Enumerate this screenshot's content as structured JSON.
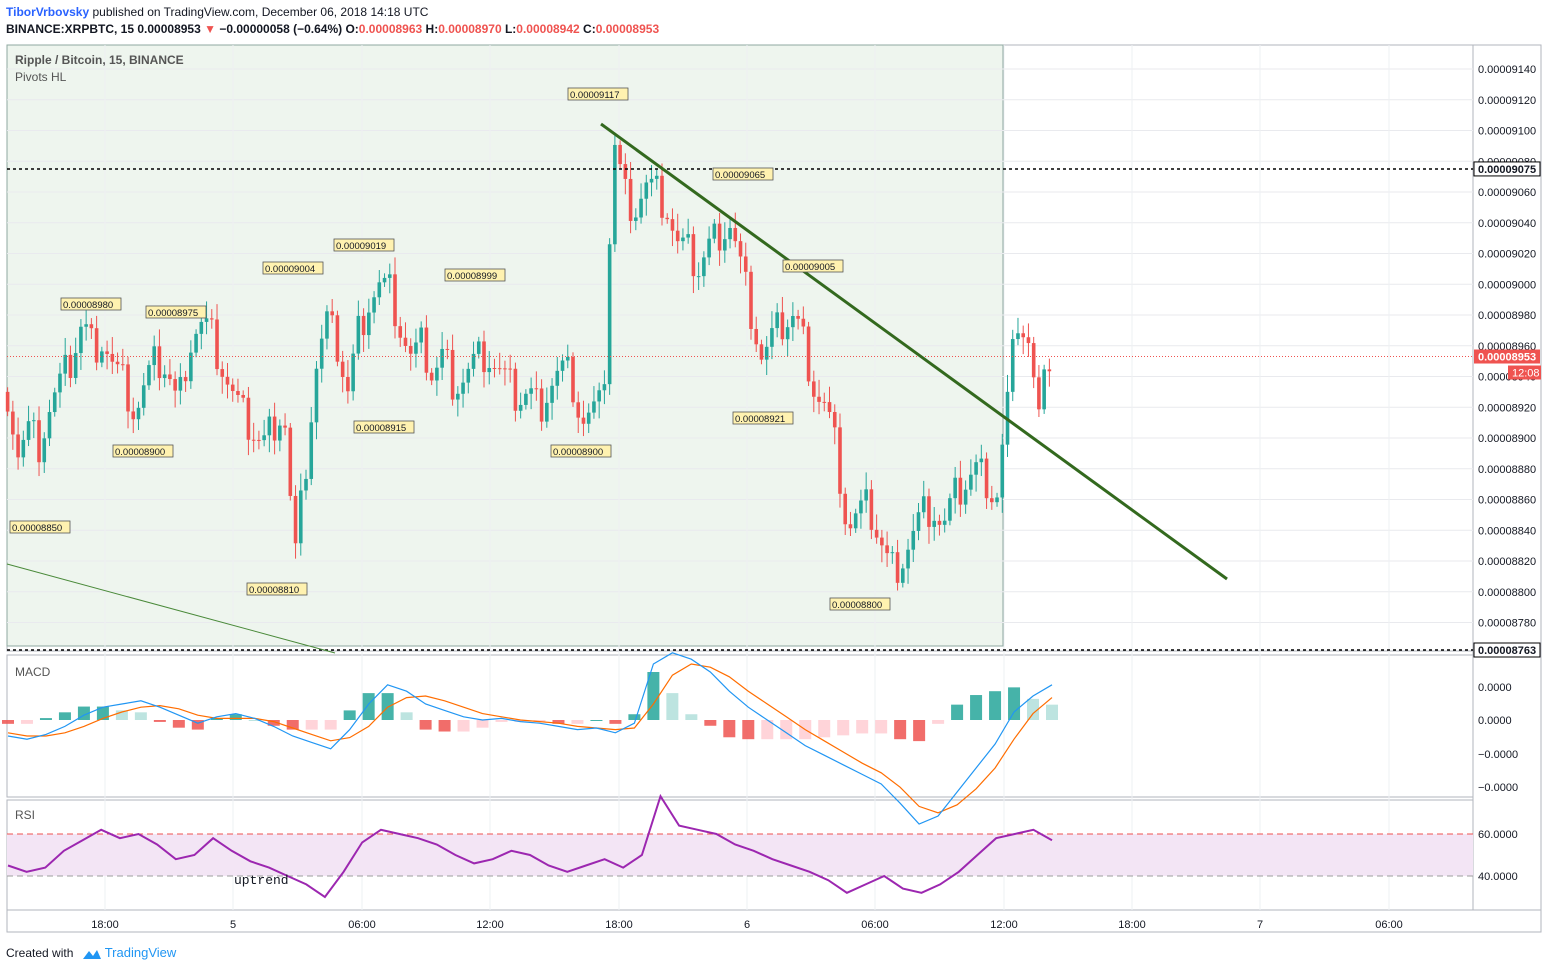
{
  "header": {
    "user": "TiborVrbovsky",
    "published_text": " published on TradingView.com, December 06, 2018 14:18 UTC",
    "symbol": "BINANCE:XRPBTC, 15",
    "last": "0.00008953",
    "change_arrow": "▼",
    "change": "−0.00000058 (−0.64%)",
    "o_label": "O:",
    "o": "0.00008963",
    "h_label": "H:",
    "h": "0.00008970",
    "l_label": "L:",
    "l": "0.00008942",
    "c_label": "C:",
    "c": "0.00008953"
  },
  "footer": {
    "created": "Created with",
    "brand": "TradingView"
  },
  "chart_data": {
    "type": "candlestick",
    "title": "Ripple / Bitcoin, 15, BINANCE",
    "indicator": "Pivots HL",
    "y_range": [
      8.76e-05,
      9.15e-05
    ],
    "y_ticks": [
      "0.00009140",
      "0.00009120",
      "0.00009100",
      "0.00009080",
      "0.00009060",
      "0.00009040",
      "0.00009020",
      "0.00009000",
      "0.00008980",
      "0.00008960",
      "0.00008940",
      "0.00008920",
      "0.00008900",
      "0.00008880",
      "0.00008860",
      "0.00008840",
      "0.00008820",
      "0.00008800",
      "0.00008780"
    ],
    "x_ticks": [
      "18:00",
      "5",
      "06:00",
      "12:00",
      "18:00",
      "6",
      "06:00",
      "12:00",
      "18:00",
      "7",
      "06:00"
    ],
    "last_price": "0.00008953",
    "countdown": "12:08",
    "horizontal_levels": [
      {
        "label": "0.00009075",
        "value": 9.075e-05
      },
      {
        "label": "0.00008763",
        "value": 8.763e-05
      }
    ],
    "trendlines": [
      {
        "from": [
          "5 17:00",
          9.103e-05
        ],
        "to": [
          "6 23:20",
          8.81e-05
        ]
      },
      {
        "from": [
          "4 14:00",
          8.818e-05
        ],
        "to": [
          "5 09:20",
          8.758e-05
        ]
      }
    ],
    "pivots": [
      {
        "label": "0.00008850",
        "type": "low"
      },
      {
        "label": "0.00008980",
        "type": "high"
      },
      {
        "label": "0.00008900",
        "type": "low"
      },
      {
        "label": "0.00008975",
        "type": "high"
      },
      {
        "label": "0.00009004",
        "type": "high"
      },
      {
        "label": "0.00008810",
        "type": "low"
      },
      {
        "label": "0.00009019",
        "type": "high"
      },
      {
        "label": "0.00008915",
        "type": "low"
      },
      {
        "label": "0.00008999",
        "type": "high"
      },
      {
        "label": "0.00008900",
        "type": "low"
      },
      {
        "label": "0.00009117",
        "type": "high"
      },
      {
        "label": "0.00009065",
        "type": "high"
      },
      {
        "label": "0.00008921",
        "type": "low"
      },
      {
        "label": "0.00009005",
        "type": "high"
      },
      {
        "label": "0.00008800",
        "type": "low"
      }
    ],
    "close_path": [
      8930,
      8890,
      8905,
      8895,
      8920,
      8935,
      8950,
      8975,
      8960,
      8965,
      8945,
      8935,
      8915,
      8935,
      8950,
      8945,
      8920,
      8960,
      8975,
      8970,
      8950,
      8930,
      8915,
      8905,
      8895,
      8910,
      8920,
      8820,
      8880,
      8945,
      8975,
      8960,
      8930,
      8970,
      8990,
      9000,
      8995,
      8970,
      8950,
      8960,
      8940,
      8955,
      8935,
      8940,
      8950,
      8955,
      8945,
      8935,
      8925,
      8930,
      8920,
      8935,
      8945,
      8940,
      8910,
      8915,
      8920,
      9095,
      9060,
      9050,
      9065,
      9060,
      9050,
      9025,
      9020,
      9010,
      9025,
      9035,
      9040,
      9010,
      8980,
      8950,
      8965,
      8975,
      8980,
      8960,
      8930,
      8920,
      8890,
      8840,
      8850,
      8855,
      8835,
      8815,
      8820,
      8835,
      8850,
      8855,
      8840,
      8860,
      8870,
      8880,
      8875,
      8860,
      8920,
      8980,
      8965,
      8910,
      8953
    ],
    "macd": {
      "label": "MACD",
      "y_ticks": [
        "0.0000",
        "0.0000",
        "−0.0000",
        "−0.0000"
      ],
      "macd_line": [
        -10,
        -12,
        -9,
        -4,
        3,
        8,
        10,
        12,
        8,
        3,
        -2,
        2,
        4,
        1,
        -4,
        -10,
        -14,
        -18,
        -6,
        10,
        22,
        18,
        10,
        6,
        2,
        0,
        1,
        -1,
        -2,
        -4,
        -6,
        -5,
        -8,
        -2,
        35,
        42,
        38,
        30,
        18,
        8,
        0,
        -8,
        -16,
        -22,
        -28,
        -34,
        -40,
        -52,
        -65,
        -60,
        -45,
        -30,
        -15,
        5,
        15,
        22
      ],
      "signal_line": [
        -8,
        -10,
        -10,
        -8,
        -4,
        1,
        5,
        8,
        9,
        7,
        3,
        1,
        1,
        1,
        -1,
        -5,
        -9,
        -13,
        -11,
        -4,
        8,
        14,
        15,
        12,
        8,
        4,
        2,
        0,
        -1,
        -2,
        -4,
        -5,
        -6,
        -5,
        10,
        28,
        35,
        33,
        27,
        18,
        10,
        2,
        -6,
        -13,
        -20,
        -27,
        -33,
        -42,
        -54,
        -58,
        -53,
        -43,
        -30,
        -12,
        4,
        14
      ],
      "colors": {
        "macd": "#2196f3",
        "signal": "#ff6d00",
        "hist_up": "#26a69a",
        "hist_down": "#ef5350",
        "hist_up_fade": "#b2dfdb",
        "hist_down_fade": "#ffcdd2"
      }
    },
    "rsi": {
      "label": "RSI",
      "annotation": "uptrend",
      "y_ticks": [
        "60.0000",
        "40.0000"
      ],
      "bands": [
        60,
        40
      ],
      "values": [
        45,
        42,
        44,
        52,
        57,
        62,
        58,
        60,
        55,
        48,
        50,
        58,
        52,
        47,
        44,
        40,
        36,
        30,
        42,
        56,
        62,
        60,
        58,
        55,
        50,
        46,
        48,
        52,
        50,
        45,
        42,
        45,
        48,
        44,
        50,
        78,
        64,
        62,
        60,
        55,
        52,
        48,
        45,
        42,
        38,
        32,
        36,
        40,
        34,
        32,
        36,
        42,
        50,
        58,
        60,
        62,
        57
      ],
      "colors": {
        "line": "#9c27b0",
        "band_fill": "#f3e5f5"
      }
    },
    "colors": {
      "up": "#26a69a",
      "down": "#ef5350",
      "trendline": "#33691e",
      "highlight": "#eef5ee",
      "dotted_price": "#ef5350"
    }
  }
}
